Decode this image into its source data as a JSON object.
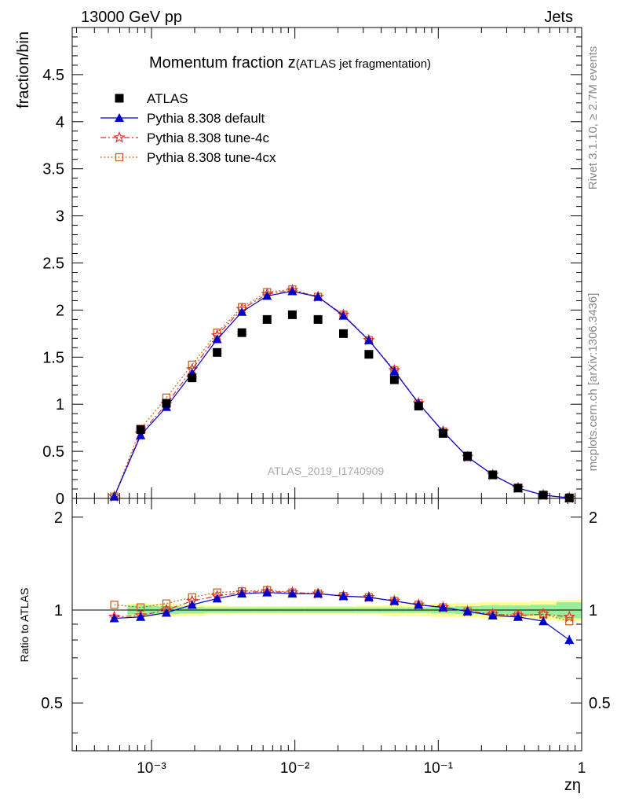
{
  "header": {
    "left": "13000 GeV pp",
    "right": "Jets"
  },
  "side": {
    "rivet": "Rivet 3.1.10, ≥ 2.7M events",
    "mcplots": "mcplots.cern.ch [arXiv:1306.3436]"
  },
  "chart_data": {
    "type": "scatter",
    "title_main": "Momentum fraction z",
    "title_sub": "(ATLAS jet fragmentation)",
    "watermark": "ATLAS_2019_I1740909",
    "xlabel": "zη",
    "ylabel": "fraction/bin",
    "ratio_ylabel": "Ratio to ATLAS",
    "x_log": true,
    "xlim": [
      0.00028,
      1.0
    ],
    "ylim": [
      0,
      5.0
    ],
    "ratio_ylim": [
      0.35,
      2.3
    ],
    "main_y_ticks": [
      "0",
      "0.5",
      "1",
      "1.5",
      "2",
      "2.5",
      "3",
      "3.5",
      "4",
      "4.5"
    ],
    "ratio_y_ticks": [
      "0.5",
      "1",
      "2"
    ],
    "x_tick_labels": [
      "10⁻³",
      "10⁻²",
      "10⁻¹",
      "1"
    ],
    "legend_position": "top-left",
    "legend": [
      {
        "label": "ATLAS",
        "marker": "square",
        "color": "#000000",
        "dash": "none"
      },
      {
        "label": "Pythia 8.308 default",
        "marker": "triangle",
        "color": "#0000cc",
        "dash": "solid"
      },
      {
        "label": "Pythia 8.308 tune-4c",
        "marker": "star",
        "color": "#e03030",
        "dash": "dashdot"
      },
      {
        "label": "Pythia 8.308 tune-4cx",
        "marker": "open-square",
        "color": "#c86420",
        "dash": "dotted"
      }
    ],
    "x": [
      0.00055,
      0.00084,
      0.00127,
      0.00192,
      0.00287,
      0.00427,
      0.0064,
      0.0096,
      0.0145,
      0.0218,
      0.0328,
      0.0494,
      0.0729,
      0.108,
      0.16,
      0.24,
      0.36,
      0.54,
      0.82
    ],
    "data_y": [
      null,
      0.73,
      1.01,
      1.28,
      1.55,
      1.76,
      1.9,
      1.95,
      1.9,
      1.75,
      1.53,
      1.26,
      0.98,
      0.69,
      0.45,
      0.25,
      0.11,
      0.035,
      0.005
    ],
    "data_band_inner": [
      null,
      0.035,
      0.03,
      0.025,
      0.02,
      0.02,
      0.02,
      0.02,
      0.02,
      0.02,
      0.02,
      0.02,
      0.02,
      0.025,
      0.03,
      0.035,
      0.035,
      0.04,
      0.06
    ],
    "data_band_outer": [
      null,
      0.05,
      0.045,
      0.04,
      0.035,
      0.03,
      0.03,
      0.03,
      0.03,
      0.03,
      0.035,
      0.04,
      0.045,
      0.05,
      0.055,
      0.06,
      0.06,
      0.07,
      0.08
    ],
    "series": [
      {
        "name": "Pythia 8.308 default",
        "values": [
          0.02,
          0.67,
          0.97,
          1.33,
          1.69,
          1.98,
          2.15,
          2.2,
          2.14,
          1.94,
          1.68,
          1.35,
          1.01,
          0.71,
          0.44,
          0.25,
          0.11,
          0.035,
          0.005
        ],
        "ratio": [
          0.94,
          0.95,
          0.98,
          1.04,
          1.09,
          1.13,
          1.14,
          1.13,
          1.13,
          1.11,
          1.1,
          1.07,
          1.04,
          1.02,
          0.99,
          0.96,
          0.95,
          0.92,
          0.8
        ]
      },
      {
        "name": "Pythia 8.308 tune-4c",
        "values": [
          0.02,
          0.69,
          1.0,
          1.37,
          1.73,
          2.01,
          2.17,
          2.21,
          2.14,
          1.95,
          1.68,
          1.36,
          1.01,
          0.71,
          0.44,
          0.25,
          0.11,
          0.035,
          0.005
        ],
        "ratio": [
          0.95,
          0.96,
          1.0,
          1.07,
          1.11,
          1.14,
          1.15,
          1.14,
          1.13,
          1.11,
          1.1,
          1.07,
          1.04,
          1.02,
          0.99,
          0.97,
          0.96,
          0.97,
          0.95
        ]
      },
      {
        "name": "Pythia 8.308 tune-4cx",
        "values": [
          0.02,
          0.74,
          1.07,
          1.42,
          1.76,
          2.03,
          2.19,
          2.22,
          2.14,
          1.95,
          1.68,
          1.36,
          1.01,
          0.71,
          0.44,
          0.25,
          0.11,
          0.035,
          0.005
        ],
        "ratio": [
          1.04,
          1.02,
          1.05,
          1.1,
          1.14,
          1.15,
          1.16,
          1.14,
          1.13,
          1.11,
          1.1,
          1.07,
          1.04,
          1.02,
          0.99,
          0.97,
          0.96,
          0.97,
          0.92
        ]
      }
    ]
  }
}
